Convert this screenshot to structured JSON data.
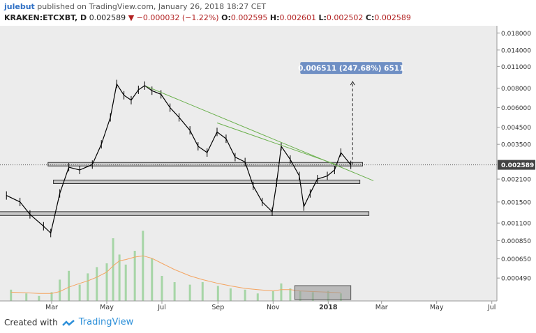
{
  "header": {
    "author": "julebut",
    "text": "published on TradingView.com, January 26, 2018 18:27 CET"
  },
  "symbol_line": {
    "symbol": "KRAKEN:ETCXBT, D",
    "last": "0.002589",
    "change": "−0.000032 (−1.22%)",
    "open_label": "O:",
    "open": "0.002595",
    "high_label": "H:",
    "high": "0.002601",
    "low_label": "L:",
    "low": "0.002502",
    "close_label": "C:",
    "close": "0.002589"
  },
  "footer": {
    "created_with": "Created with",
    "brand": "TradingView"
  },
  "colors": {
    "background": "#ececec",
    "price": "#000000",
    "trendline": "#6ab04c",
    "zone_fill": "#c8c8c8",
    "volume": "#a6d5a6",
    "volume_ma": "#f4a460",
    "projection_label": "#6f8fc4",
    "price_tag": "#444444"
  },
  "chart_data": {
    "type": "line",
    "scale": "log",
    "x_ticks": [
      "Mar",
      "May",
      "Jul",
      "Sep",
      "Nov",
      "2018",
      "Mar",
      "May",
      "Jul"
    ],
    "y_ticks": [
      "0.018000",
      "0.014000",
      "0.011000",
      "0.008000",
      "0.006000",
      "0.004500",
      "0.003500",
      "0.002589",
      "0.002100",
      "0.001500",
      "0.001100",
      "0.000850",
      "0.000650",
      "0.000490"
    ],
    "ylim": [
      0.00035,
      0.02
    ],
    "series": [
      {
        "x": [
          "2017-01-10",
          "2017-01-25",
          "2017-02-05",
          "2017-02-20",
          "2017-02-28",
          "2017-03-10",
          "2017-03-20",
          "2017-04-01",
          "2017-04-15",
          "2017-04-25",
          "2017-05-05",
          "2017-05-12",
          "2017-05-20",
          "2017-05-28",
          "2017-06-05",
          "2017-06-12",
          "2017-06-20",
          "2017-06-30",
          "2017-07-10",
          "2017-07-20",
          "2017-08-01",
          "2017-08-10",
          "2017-08-20",
          "2017-08-31",
          "2017-09-10",
          "2017-09-20",
          "2017-10-01",
          "2017-10-10",
          "2017-10-20",
          "2017-10-31",
          "2017-11-05",
          "2017-11-10",
          "2017-11-20",
          "2017-11-30",
          "2017-12-05",
          "2017-12-12",
          "2017-12-20",
          "2017-12-31",
          "2018-01-08",
          "2018-01-15",
          "2018-01-26"
        ],
        "values": [
          0.00165,
          0.0015,
          0.00125,
          0.00105,
          0.00095,
          0.0017,
          0.0025,
          0.0024,
          0.0026,
          0.0035,
          0.0052,
          0.0085,
          0.0072,
          0.0067,
          0.0078,
          0.0083,
          0.0077,
          0.0073,
          0.006,
          0.0052,
          0.0043,
          0.0034,
          0.0031,
          0.0042,
          0.0038,
          0.0029,
          0.0027,
          0.0019,
          0.0015,
          0.0013,
          0.002,
          0.0034,
          0.0028,
          0.0022,
          0.0014,
          0.0017,
          0.0021,
          0.0022,
          0.0024,
          0.0031,
          0.002589
        ]
      }
    ],
    "annotations": {
      "projection_label": "0.006511 (247.68%) 6511",
      "current_price_tag": "0.002589",
      "zones": [
        {
          "from": "2017-02-25",
          "to": "2018-02-08",
          "low": 0.00255,
          "high": 0.00268
        },
        {
          "from": "2017-03-03",
          "to": "2018-02-05",
          "low": 0.00197,
          "high": 0.00207
        },
        {
          "from": "2016-12-28",
          "to": "2018-02-15",
          "low": 0.00123,
          "high": 0.0013
        }
      ],
      "trendlines": [
        {
          "x1": "2017-06-14",
          "y1": 0.0082,
          "x2": "2018-02-20",
          "y2": 0.00205
        },
        {
          "x1": "2017-08-31",
          "y1": 0.0048,
          "x2": "2018-01-10",
          "y2": 0.0026
        }
      ],
      "projection_arrow": {
        "x": "2018-01-28",
        "from": 0.0026,
        "to": 0.0088
      }
    }
  },
  "volume_data": {
    "x": [
      "2017-01-15",
      "2017-02-01",
      "2017-02-15",
      "2017-03-01",
      "2017-03-10",
      "2017-03-20",
      "2017-04-01",
      "2017-04-10",
      "2017-04-20",
      "2017-05-01",
      "2017-05-08",
      "2017-05-15",
      "2017-05-22",
      "2017-06-01",
      "2017-06-10",
      "2017-06-20",
      "2017-07-01",
      "2017-07-15",
      "2017-08-01",
      "2017-08-15",
      "2017-09-01",
      "2017-09-15",
      "2017-10-01",
      "2017-10-15",
      "2017-11-01",
      "2017-11-10",
      "2017-11-20",
      "2017-12-01",
      "2017-12-15",
      "2018-01-01",
      "2018-01-15"
    ],
    "values": [
      18,
      12,
      8,
      14,
      34,
      48,
      26,
      44,
      54,
      60,
      100,
      74,
      58,
      80,
      112,
      68,
      40,
      30,
      26,
      30,
      24,
      20,
      18,
      12,
      16,
      28,
      20,
      16,
      14,
      16,
      12
    ],
    "ma": [
      14,
      13,
      12,
      12,
      15,
      22,
      28,
      32,
      38,
      46,
      56,
      64,
      66,
      70,
      72,
      68,
      60,
      50,
      40,
      34,
      28,
      24,
      20,
      18,
      16,
      18,
      18,
      16,
      15,
      14,
      13
    ]
  }
}
